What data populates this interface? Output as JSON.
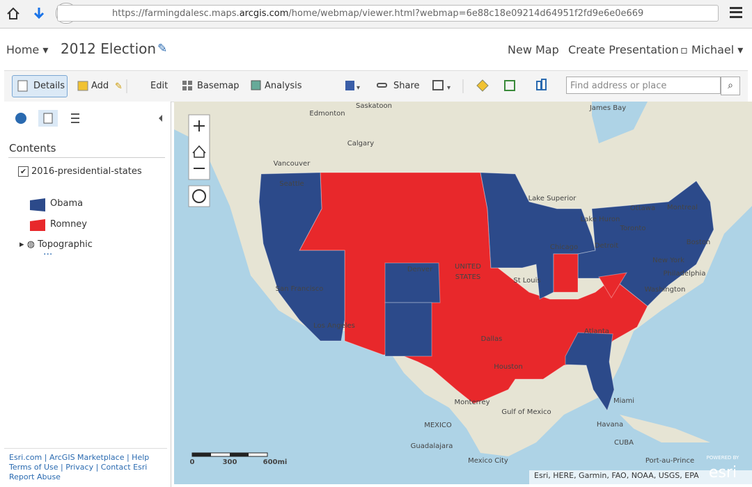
{
  "browser": {
    "url": {
      "prefix": "https://farmingdalesc.maps.",
      "domain": "arcgis.com",
      "path": "/home/webmap/viewer.html?webmap=6e88c18e09214d64951f2fd9e6e0e669"
    }
  },
  "header": {
    "home": "Home",
    "title": "2012 Election",
    "links": [
      "New Map",
      "Create Presentation"
    ],
    "user": "Michael"
  },
  "toolbar": {
    "buttons": [
      "Details",
      "Add",
      "Edit",
      "Basemap",
      "Analysis",
      "Share"
    ],
    "search_placeholder": "Find address or place"
  },
  "sidebar": {
    "heading": "Contents",
    "layer": "2016-presidential-states",
    "legend": [
      {
        "label": "Obama",
        "color": "#2c4a8a"
      },
      {
        "label": "Romney",
        "color": "#e8282b"
      }
    ],
    "basemap": "Topographic",
    "footer_links": [
      "Esri.com",
      "ArcGIS Marketplace",
      "Help",
      "Terms of Use",
      "Privacy",
      "Contact Esri",
      "Report Abuse"
    ]
  },
  "map": {
    "labels": [
      "Edmonton",
      "Saskatoon",
      "Calgary",
      "Vancouver",
      "Seattle",
      "Lake Superior",
      "Ottawa",
      "Montreal",
      "Lake Huron",
      "Toronto",
      "Detroit",
      "Chicago",
      "Boston",
      "New York",
      "Philadelphia",
      "Washington",
      "St Louis",
      "Denver",
      "UNITED",
      "STATES",
      "San Francisco",
      "Los Angeles",
      "Dallas",
      "Houston",
      "Atlanta",
      "Miami",
      "Havana",
      "CUBA",
      "Monterrey",
      "MEXICO",
      "Guadalajara",
      "Mexico City",
      "Gulf of Mexico",
      "James Bay",
      "Port-au-Prince"
    ],
    "scale_bar": [
      "0",
      "300",
      "600mi"
    ],
    "attribution": "Esri, HERE, Garmin, FAO, NOAA, USGS, EPA",
    "powered_by": "POWERED BY",
    "logo": "esri"
  }
}
